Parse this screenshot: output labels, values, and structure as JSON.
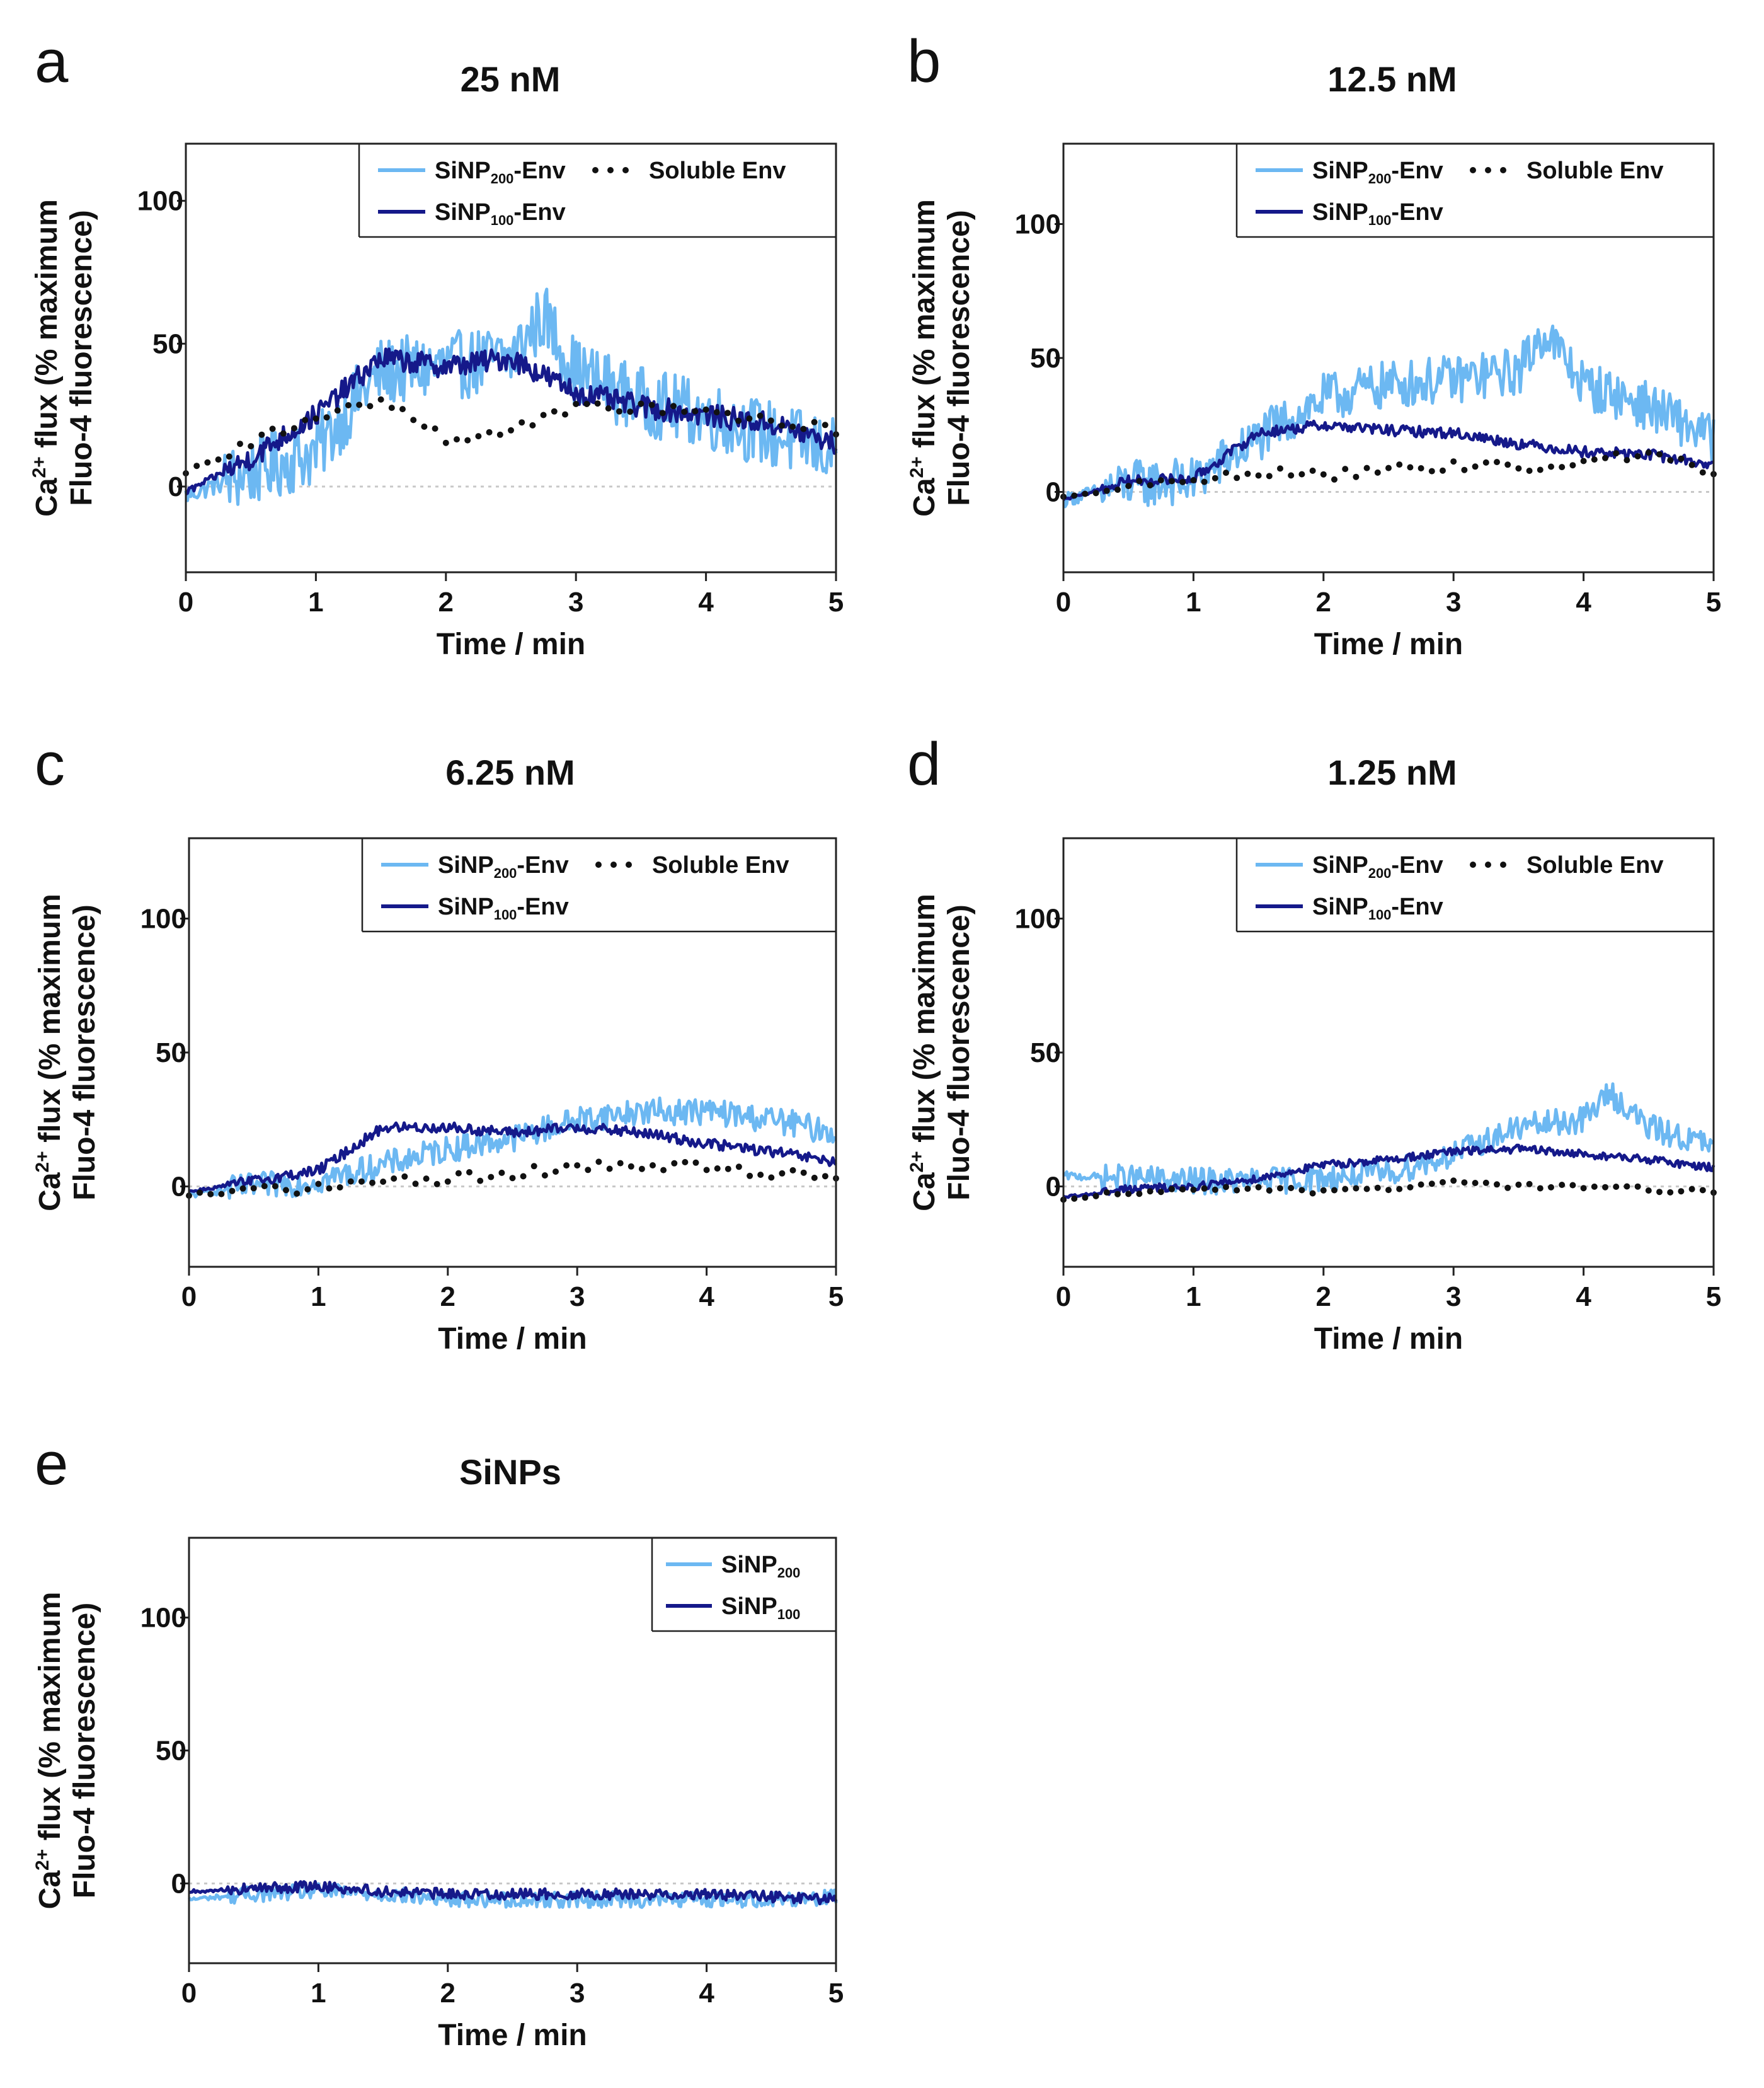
{
  "colors": {
    "sinp200": "#6cb8f2",
    "sinp100": "#15198a",
    "soluble": "#111111",
    "baseline": "#c8c8c8",
    "axis": "#222222"
  },
  "chart_data": [
    {
      "panel": "a",
      "type": "line",
      "title": "25 nM",
      "xlabel": "Time / min",
      "ylabel_line1": "Ca2+ flux (% maximum",
      "ylabel_line2": "Fluo-4 fluorescence)",
      "xlim": [
        0,
        5
      ],
      "ylim": [
        -30,
        120
      ],
      "xticks": [
        0,
        1,
        2,
        3,
        4,
        5
      ],
      "yticks": [
        0,
        50,
        100
      ],
      "legend": [
        "SiNP200-Env",
        "SiNP100-Env",
        "Soluble Env"
      ],
      "series": [
        {
          "name": "SiNP200-Env",
          "style": "solid-light",
          "noise": 12,
          "x": [
            0,
            0.5,
            1,
            1.3,
            1.5,
            2,
            2.5,
            2.75,
            3,
            3.5,
            4,
            4.5,
            5
          ],
          "values": [
            -3,
            5,
            12,
            30,
            40,
            42,
            45,
            60,
            40,
            30,
            25,
            18,
            12
          ]
        },
        {
          "name": "SiNP100-Env",
          "style": "solid-dark",
          "noise": 4,
          "x": [
            0,
            0.5,
            1,
            1.5,
            2,
            2.5,
            3,
            3.5,
            4,
            4.5,
            5
          ],
          "values": [
            -2,
            10,
            25,
            45,
            42,
            45,
            33,
            28,
            25,
            22,
            15
          ]
        },
        {
          "name": "Soluble Env",
          "style": "dotted",
          "noise": 2,
          "x": [
            0,
            0.5,
            1,
            1.5,
            2,
            2.5,
            3,
            3.5,
            4,
            4.5,
            5
          ],
          "values": [
            5,
            15,
            25,
            30,
            17,
            20,
            27,
            28,
            27,
            22,
            20
          ]
        }
      ]
    },
    {
      "panel": "b",
      "type": "line",
      "title": "12.5 nM",
      "xlabel": "Time / min",
      "ylabel_line1": "Ca2+ flux (% maximum",
      "ylabel_line2": "Fluo-4 fluorescence)",
      "xlim": [
        0,
        5
      ],
      "ylim": [
        -30,
        130
      ],
      "xticks": [
        0,
        1,
        2,
        3,
        4,
        5
      ],
      "yticks": [
        0,
        50,
        100
      ],
      "legend": [
        "SiNP200-Env",
        "SiNP100-Env",
        "Soluble Env"
      ],
      "series": [
        {
          "name": "SiNP200-Env",
          "style": "solid-light",
          "noise": 9,
          "x": [
            0,
            0.5,
            1,
            1.5,
            2,
            2.5,
            3,
            3.5,
            3.7,
            4,
            4.5,
            5
          ],
          "values": [
            -3,
            3,
            4,
            20,
            35,
            40,
            42,
            45,
            60,
            40,
            32,
            20
          ]
        },
        {
          "name": "SiNP100-Env",
          "style": "solid-dark",
          "noise": 2,
          "x": [
            0,
            0.5,
            1,
            1.5,
            2,
            2.5,
            3,
            3.5,
            4,
            4.5,
            5
          ],
          "values": [
            -3,
            4,
            5,
            22,
            25,
            23,
            22,
            18,
            15,
            14,
            10
          ]
        },
        {
          "name": "Soluble Env",
          "style": "dotted",
          "noise": 2,
          "x": [
            0,
            0.5,
            1,
            1.5,
            2,
            2.5,
            3,
            3.5,
            4,
            4.5,
            5
          ],
          "values": [
            -2,
            2,
            4,
            8,
            6,
            8,
            10,
            9,
            12,
            13,
            8
          ]
        }
      ]
    },
    {
      "panel": "c",
      "type": "line",
      "title": "6.25 nM",
      "xlabel": "Time / min",
      "ylabel_line1": "Ca2+ flux (% maximum",
      "ylabel_line2": "Fluo-4 fluorescence)",
      "xlim": [
        0,
        5
      ],
      "ylim": [
        -30,
        130
      ],
      "xticks": [
        0,
        1,
        2,
        3,
        4,
        5
      ],
      "yticks": [
        0,
        50,
        100
      ],
      "legend": [
        "SiNP200-Env",
        "SiNP100-Env",
        "Soluble Env"
      ],
      "series": [
        {
          "name": "SiNP200-Env",
          "style": "solid-light",
          "noise": 5,
          "x": [
            0,
            0.5,
            1,
            1.5,
            2,
            2.5,
            3,
            3.5,
            4,
            4.5,
            5
          ],
          "values": [
            -3,
            0,
            2,
            8,
            14,
            18,
            25,
            28,
            28,
            25,
            20
          ]
        },
        {
          "name": "SiNP100-Env",
          "style": "solid-dark",
          "noise": 2,
          "x": [
            0,
            0.5,
            1,
            1.5,
            2,
            2.5,
            3,
            3.5,
            4,
            4.5,
            5
          ],
          "values": [
            -2,
            2,
            6,
            22,
            22,
            20,
            22,
            20,
            16,
            13,
            9
          ]
        },
        {
          "name": "Soluble Env",
          "style": "dotted",
          "noise": 2,
          "x": [
            0,
            0.5,
            1,
            1.5,
            2,
            2.5,
            3,
            3.5,
            4,
            4.5,
            5
          ],
          "values": [
            -3,
            -2,
            -1,
            2,
            3,
            5,
            7,
            8,
            7,
            5,
            4
          ]
        }
      ]
    },
    {
      "panel": "d",
      "type": "line",
      "title": "1.25 nM",
      "xlabel": "Time / min",
      "ylabel_line1": "Ca2+ flux (% maximum",
      "ylabel_line2": "Fluo-4 fluorescence)",
      "xlim": [
        0,
        5
      ],
      "ylim": [
        -30,
        130
      ],
      "xticks": [
        0,
        1,
        2,
        3,
        4,
        5
      ],
      "yticks": [
        0,
        50,
        100
      ],
      "legend": [
        "SiNP200-Env",
        "SiNP100-Env",
        "Soluble Env"
      ],
      "series": [
        {
          "name": "SiNP200-Env",
          "style": "solid-light",
          "noise": 5,
          "x": [
            0,
            0.5,
            1,
            1.5,
            2,
            2.5,
            3,
            3.5,
            4,
            4.2,
            4.5,
            5
          ],
          "values": [
            4,
            3,
            2,
            2,
            3,
            5,
            12,
            22,
            25,
            35,
            22,
            15
          ]
        },
        {
          "name": "SiNP100-Env",
          "style": "solid-dark",
          "noise": 1.5,
          "x": [
            0,
            0.5,
            1,
            1.5,
            2,
            2.5,
            3,
            3.5,
            4,
            4.5,
            5
          ],
          "values": [
            -4,
            -1,
            0,
            3,
            8,
            10,
            13,
            14,
            12,
            10,
            7
          ]
        },
        {
          "name": "Soluble Env",
          "style": "dotted",
          "noise": 1,
          "x": [
            0,
            0.5,
            1,
            1.5,
            2,
            2.5,
            3,
            3.5,
            4,
            4.5,
            5
          ],
          "values": [
            -5,
            -2,
            -1,
            -1,
            -2,
            -1,
            2,
            0,
            0,
            -1,
            -2
          ]
        }
      ]
    },
    {
      "panel": "e",
      "type": "line",
      "title": "SiNPs",
      "xlabel": "Time / min",
      "ylabel_line1": "Ca2+ flux (% maximum",
      "ylabel_line2": "Fluo-4 fluorescence)",
      "xlim": [
        0,
        5
      ],
      "ylim": [
        -30,
        130
      ],
      "xticks": [
        0,
        1,
        2,
        3,
        4,
        5
      ],
      "yticks": [
        0,
        50,
        100
      ],
      "legend": [
        "SiNP200",
        "SiNP100"
      ],
      "series": [
        {
          "name": "SiNP200",
          "style": "solid-light",
          "noise": 3,
          "x": [
            0,
            0.5,
            1,
            1.5,
            2,
            2.5,
            3,
            3.5,
            4,
            4.5,
            5
          ],
          "values": [
            -6,
            -4,
            -3,
            -4,
            -6,
            -6,
            -6,
            -6,
            -6,
            -6,
            -5
          ]
        },
        {
          "name": "SiNP100",
          "style": "solid-dark",
          "noise": 2,
          "x": [
            0,
            0.5,
            1,
            1.5,
            2,
            2.5,
            3,
            3.5,
            4,
            4.5,
            5
          ],
          "values": [
            -3,
            -2,
            -1,
            -3,
            -4,
            -4,
            -4,
            -4,
            -4,
            -5,
            -6
          ]
        }
      ]
    }
  ],
  "text": {
    "letters": [
      "a",
      "b",
      "c",
      "d",
      "e"
    ],
    "legend_labels": {
      "sinp200_env_main": "SiNP",
      "sinp200_sub": "200",
      "env_suffix": "-Env",
      "sinp100_sub": "100",
      "soluble_env": "Soluble Env"
    },
    "ylabel_ca": "Ca",
    "ylabel_sup": "2+",
    "ylabel_rest": " flux (% maximum",
    "ylabel_line2": "Fluo-4 fluorescence)"
  }
}
